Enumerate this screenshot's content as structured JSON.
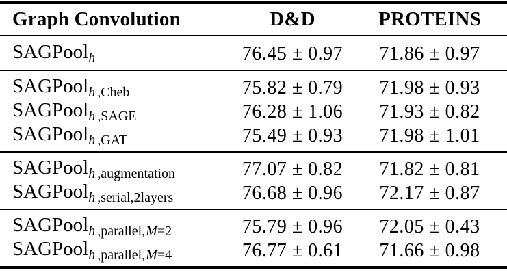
{
  "page": {
    "background_color": "#ffffff",
    "text_color": "#000000"
  },
  "table": {
    "columns": [
      "Graph Convolution",
      "D&D",
      "PROTEINS"
    ],
    "groups": [
      {
        "rows": [
          {
            "base": "SAGPool",
            "sub_italic": "h",
            "sub_text": "",
            "sub_var": "",
            "sub_eq": "",
            "dd": "76.45 ± 0.97",
            "proteins": "71.86 ± 0.97"
          }
        ]
      },
      {
        "rows": [
          {
            "base": "SAGPool",
            "sub_italic": "h",
            "sub_text": ",Cheb",
            "sub_var": "",
            "sub_eq": "",
            "dd": "75.82 ± 0.79",
            "proteins": "71.98 ± 0.93"
          },
          {
            "base": "SAGPool",
            "sub_italic": "h",
            "sub_text": ",SAGE",
            "sub_var": "",
            "sub_eq": "",
            "dd": "76.28 ± 1.06",
            "proteins": "71.93 ± 0.82"
          },
          {
            "base": "SAGPool",
            "sub_italic": "h",
            "sub_text": ",GAT",
            "sub_var": "",
            "sub_eq": "",
            "dd": "75.49 ± 0.93",
            "proteins": "71.98 ± 1.01"
          }
        ]
      },
      {
        "rows": [
          {
            "base": "SAGPool",
            "sub_italic": "h",
            "sub_text": ",augmentation",
            "sub_var": "",
            "sub_eq": "",
            "dd": "77.07 ± 0.82",
            "proteins": "71.82 ± 0.81"
          },
          {
            "base": "SAGPool",
            "sub_italic": "h",
            "sub_text": ",serial,2layers",
            "sub_var": "",
            "sub_eq": "",
            "dd": "76.68 ± 0.96",
            "proteins": "72.17 ± 0.87"
          }
        ]
      },
      {
        "rows": [
          {
            "base": "SAGPool",
            "sub_italic": "h",
            "sub_text": ",parallel,",
            "sub_var": "M",
            "sub_eq": "=2",
            "dd": "75.79 ± 0.96",
            "proteins": "72.05 ± 0.43"
          },
          {
            "base": "SAGPool",
            "sub_italic": "h",
            "sub_text": ",parallel,",
            "sub_var": "M",
            "sub_eq": "=4",
            "dd": "76.77 ± 0.61",
            "proteins": "71.66 ± 0.98"
          }
        ]
      }
    ]
  }
}
